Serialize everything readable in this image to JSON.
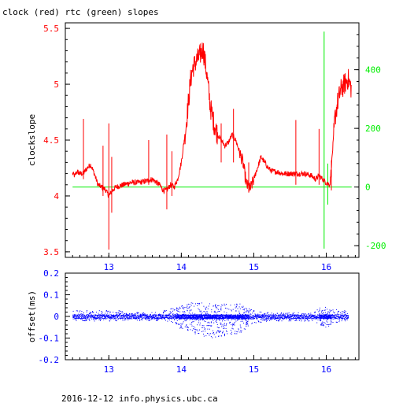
{
  "title": "clock (red) rtc (green) slopes",
  "footer": "2016-12-12 info.physics.ubc.ca",
  "colors": {
    "clock": "#ff0000",
    "rtc": "#00ee00",
    "offset": "#0000ff",
    "frame": "#000000"
  },
  "chart_data": [
    {
      "type": "line",
      "title": "clock (red) rtc (green) slopes",
      "ylabel": "clockslope",
      "xlim": [
        12.4,
        16.45
      ],
      "ylim": [
        3.45,
        5.55
      ],
      "y2lim": [
        -240,
        560
      ],
      "x_ticks": [
        "13",
        "14",
        "15",
        "16"
      ],
      "y_ticks": [
        "3.5",
        "4",
        "4.5",
        "5",
        "5.5"
      ],
      "y2_ticks": [
        "-200",
        "0",
        "200",
        "400"
      ],
      "grid": false,
      "series": [
        {
          "name": "clock",
          "axis": "left",
          "x": [
            12.5,
            12.53,
            12.56,
            12.6,
            12.65,
            12.7,
            12.75,
            12.8,
            12.85,
            12.9,
            12.95,
            13.0,
            13.05,
            13.1,
            13.2,
            13.3,
            13.4,
            13.5,
            13.6,
            13.7,
            13.75,
            13.8,
            13.85,
            13.9,
            13.95,
            14.0,
            14.03,
            14.06,
            14.1,
            14.13,
            14.16,
            14.2,
            14.25,
            14.3,
            14.35,
            14.4,
            14.45,
            14.5,
            14.55,
            14.6,
            14.65,
            14.7,
            14.75,
            14.8,
            14.85,
            14.9,
            14.95,
            15.0,
            15.05,
            15.1,
            15.15,
            15.2,
            15.25,
            15.3,
            15.4,
            15.5,
            15.6,
            15.7,
            15.8,
            15.85,
            15.9,
            15.95,
            16.0,
            16.05,
            16.08,
            16.12,
            16.16,
            16.2,
            16.25,
            16.3,
            16.35
          ],
          "y": [
            4.2,
            4.18,
            4.22,
            4.2,
            4.2,
            4.25,
            4.28,
            4.2,
            4.1,
            4.08,
            4.06,
            4.0,
            4.05,
            4.08,
            4.1,
            4.12,
            4.12,
            4.13,
            4.15,
            4.1,
            4.05,
            4.05,
            4.1,
            4.08,
            4.15,
            4.3,
            4.45,
            4.6,
            4.85,
            5.05,
            5.15,
            5.2,
            5.25,
            5.32,
            5.1,
            4.8,
            4.65,
            4.55,
            4.5,
            4.45,
            4.48,
            4.55,
            4.5,
            4.4,
            4.3,
            4.1,
            4.06,
            4.15,
            4.25,
            4.35,
            4.3,
            4.25,
            4.22,
            4.22,
            4.2,
            4.2,
            4.2,
            4.2,
            4.18,
            4.15,
            4.18,
            4.15,
            4.12,
            4.1,
            4.35,
            4.7,
            4.85,
            4.95,
            5.0,
            5.05,
            4.95
          ],
          "spikes": [
            {
              "x": 12.65,
              "min": 4.15,
              "max": 4.69
            },
            {
              "x": 12.92,
              "min": 4.0,
              "max": 4.45
            },
            {
              "x": 13.0,
              "min": 3.52,
              "max": 4.65
            },
            {
              "x": 13.04,
              "min": 3.85,
              "max": 4.35
            },
            {
              "x": 13.55,
              "min": 4.1,
              "max": 4.5
            },
            {
              "x": 13.8,
              "min": 3.88,
              "max": 4.55
            },
            {
              "x": 13.87,
              "min": 4.0,
              "max": 4.4
            },
            {
              "x": 14.55,
              "min": 4.3,
              "max": 4.65
            },
            {
              "x": 14.72,
              "min": 4.3,
              "max": 4.78
            },
            {
              "x": 14.93,
              "min": 4.03,
              "max": 4.3
            },
            {
              "x": 15.58,
              "min": 4.1,
              "max": 4.68
            },
            {
              "x": 15.9,
              "min": 4.1,
              "max": 4.6
            },
            {
              "x": 16.07,
              "min": 4.05,
              "max": 4.32
            }
          ]
        },
        {
          "name": "rtc",
          "axis": "right",
          "x": [
            12.5,
            16.35
          ],
          "y": [
            0,
            0
          ],
          "spikes": [
            {
              "x": 15.97,
              "min": -210,
              "max": 530
            },
            {
              "x": 16.02,
              "min": -60,
              "max": 80
            }
          ]
        }
      ]
    },
    {
      "type": "scatter",
      "ylabel": "offset(ms)",
      "xlim": [
        12.4,
        16.45
      ],
      "ylim": [
        -0.2,
        0.2
      ],
      "x_ticks": [
        "13",
        "14",
        "15",
        "16"
      ],
      "y_ticks": [
        "-0.2",
        "-0.1",
        "0",
        "0.1",
        "0.2"
      ],
      "grid": false,
      "series": [
        {
          "name": "offset",
          "x": [
            12.5,
            12.7,
            12.9,
            13.1,
            13.3,
            13.5,
            13.7,
            13.9,
            14.0,
            14.2,
            14.4,
            14.6,
            14.8,
            14.9,
            15.0,
            15.2,
            15.4,
            15.6,
            15.8,
            15.9,
            16.0,
            16.1,
            16.2,
            16.3
          ],
          "y_min": [
            -0.02,
            -0.02,
            -0.02,
            -0.02,
            -0.015,
            -0.02,
            -0.02,
            -0.03,
            -0.06,
            -0.08,
            -0.1,
            -0.09,
            -0.08,
            -0.05,
            -0.03,
            -0.02,
            -0.02,
            -0.02,
            -0.02,
            -0.04,
            -0.05,
            -0.03,
            -0.02,
            -0.02
          ],
          "y_max": [
            0.03,
            0.03,
            0.03,
            0.03,
            0.02,
            0.02,
            0.03,
            0.04,
            0.06,
            0.07,
            0.06,
            0.06,
            0.06,
            0.04,
            0.03,
            0.02,
            0.02,
            0.02,
            0.02,
            0.04,
            0.05,
            0.04,
            0.03,
            0.03
          ]
        }
      ]
    }
  ]
}
